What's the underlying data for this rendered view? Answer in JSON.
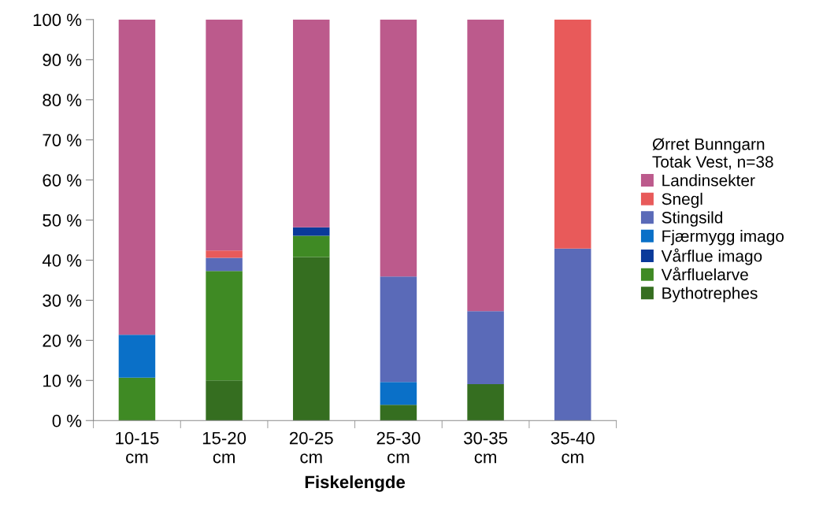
{
  "chart_data": {
    "type": "bar",
    "stacked": true,
    "xlabel": "Fiskelengde",
    "legend_title": "Ørret Bunngarn\nTotak Vest, n=38",
    "legend": "right",
    "categories": [
      "10-15\ncm",
      "15-20\ncm",
      "20-25\ncm",
      "25-30\ncm",
      "30-35\ncm",
      "35-40\ncm"
    ],
    "ylim": [
      0,
      100
    ],
    "yticks": [
      {
        "value": 0,
        "label": "0 %"
      },
      {
        "value": 10,
        "label": "10 %"
      },
      {
        "value": 20,
        "label": "20 %"
      },
      {
        "value": 30,
        "label": "30 %"
      },
      {
        "value": 40,
        "label": "40 %"
      },
      {
        "value": 50,
        "label": "50 %"
      },
      {
        "value": 60,
        "label": "60 %"
      },
      {
        "value": 70,
        "label": "70 %"
      },
      {
        "value": 80,
        "label": "80 %"
      },
      {
        "value": 90,
        "label": "90 %"
      },
      {
        "value": 100,
        "label": "100 %"
      }
    ],
    "series": [
      {
        "name": "Bythotrephes",
        "color": "#356e20",
        "values": [
          0,
          10,
          40.8,
          3.9,
          9.1,
          0
        ]
      },
      {
        "name": "Vårfluelarve",
        "color": "#3f8a24",
        "values": [
          10.7,
          27.3,
          5.3,
          0,
          0,
          0
        ]
      },
      {
        "name": "Vårflue imago",
        "color": "#0a3a9a",
        "values": [
          0,
          0,
          2.1,
          0,
          0,
          0
        ]
      },
      {
        "name": "Fjærmygg imago",
        "color": "#0a70c8",
        "values": [
          10.7,
          0,
          0,
          5.7,
          0,
          0
        ]
      },
      {
        "name": "Stingsild",
        "color": "#5a6ab8",
        "values": [
          0,
          3.3,
          0,
          26.3,
          18.2,
          42.9
        ]
      },
      {
        "name": "Snegl",
        "color": "#e85a5a",
        "values": [
          0,
          1.8,
          0,
          0,
          0,
          57.1
        ]
      },
      {
        "name": "Landinsekter",
        "color": "#bc5a8c",
        "values": [
          78.6,
          57.6,
          51.8,
          64.1,
          72.7,
          0
        ]
      }
    ]
  }
}
